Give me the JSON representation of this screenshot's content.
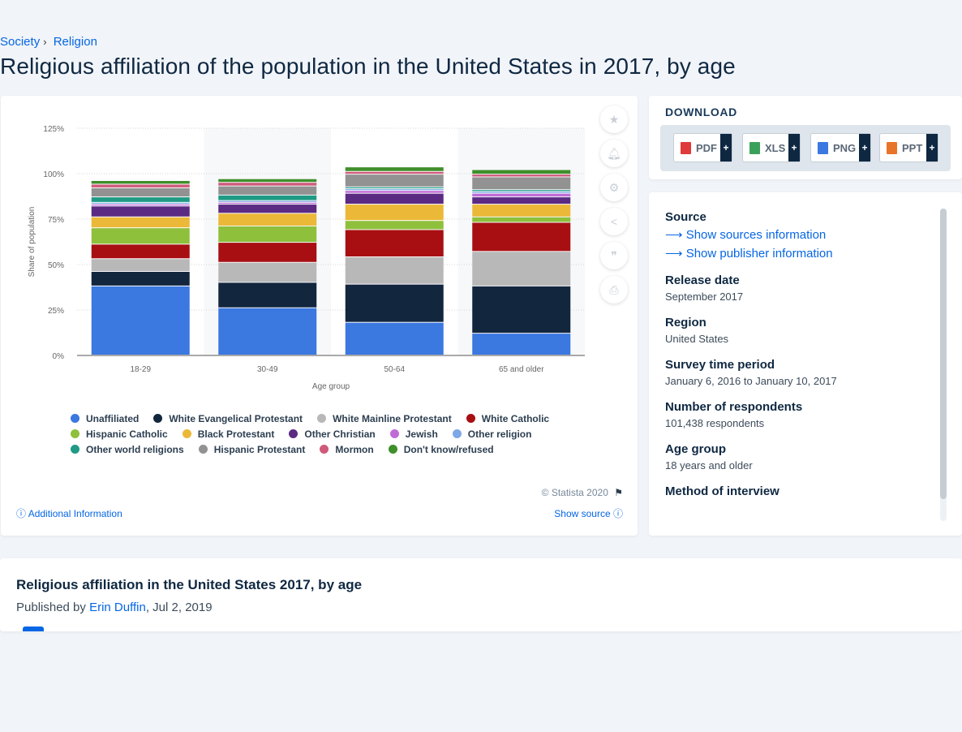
{
  "breadcrumb": {
    "items": [
      "Society",
      "Religion"
    ]
  },
  "page_title": "Religious affiliation of the population in the United States in 2017, by age",
  "chart_data": {
    "type": "bar",
    "stacked": true,
    "title": "",
    "xlabel": "Age group",
    "ylabel": "Share of population",
    "ylim": [
      0,
      125
    ],
    "yticks": [
      "0%",
      "25%",
      "50%",
      "75%",
      "100%",
      "125%"
    ],
    "grid": true,
    "legend_position": "bottom",
    "categories": [
      "18-29",
      "30-49",
      "50-64",
      "65 and older"
    ],
    "series": [
      {
        "name": "Unaffiliated",
        "color": "#3b78e0",
        "values": [
          38,
          26,
          18,
          12
        ]
      },
      {
        "name": "White Evangelical Protestant",
        "color": "#12263e",
        "values": [
          8,
          14,
          21,
          26
        ]
      },
      {
        "name": "White Mainline Protestant",
        "color": "#b8b8b8",
        "values": [
          7,
          11,
          15,
          19
        ]
      },
      {
        "name": "White Catholic",
        "color": "#a80f12",
        "values": [
          8,
          11,
          15,
          16
        ]
      },
      {
        "name": "Hispanic Catholic",
        "color": "#8ec03c",
        "values": [
          9,
          9,
          5,
          3
        ]
      },
      {
        "name": "Black Protestant",
        "color": "#ecb838",
        "values": [
          6,
          7,
          9,
          7
        ]
      },
      {
        "name": "Other Christian",
        "color": "#5b2a82",
        "values": [
          6,
          5,
          6,
          4
        ]
      },
      {
        "name": "Jewish",
        "color": "#bf6bd6",
        "values": [
          1,
          1,
          1.5,
          2
        ]
      },
      {
        "name": "Other religion",
        "color": "#7ea8e6",
        "values": [
          1,
          1,
          1,
          1
        ]
      },
      {
        "name": "Other world religions",
        "color": "#1f9a84",
        "values": [
          3,
          3,
          1,
          1
        ]
      },
      {
        "name": "Hispanic Protestant",
        "color": "#929292",
        "values": [
          5,
          5,
          7,
          7
        ]
      },
      {
        "name": "Mormon",
        "color": "#cf5a7a",
        "values": [
          2,
          2,
          1.5,
          1.5
        ]
      },
      {
        "name": "Don't know/refused",
        "color": "#3f8f2a",
        "values": [
          2,
          2,
          2.5,
          2.5
        ]
      }
    ]
  },
  "chart_meta": {
    "copyright": "© Statista 2020",
    "additional_info": "Additional Information",
    "show_source": "Show source"
  },
  "side_buttons": [
    "star-icon",
    "bell-icon",
    "gear-icon",
    "share-icon",
    "quote-icon",
    "print-icon"
  ],
  "download": {
    "title": "DOWNLOAD",
    "buttons": [
      {
        "label": "PDF",
        "color": "#e03a3a"
      },
      {
        "label": "XLS",
        "color": "#3aa15a"
      },
      {
        "label": "PNG",
        "color": "#3b78e0"
      },
      {
        "label": "PPT",
        "color": "#e8742a"
      }
    ],
    "plus": "+"
  },
  "info": {
    "source_heading": "Source",
    "show_sources": "Show sources information",
    "show_publisher": "Show publisher information",
    "release_date_heading": "Release date",
    "release_date": "September 2017",
    "region_heading": "Region",
    "region": "United States",
    "survey_period_heading": "Survey time period",
    "survey_period": "January 6, 2016 to January 10, 2017",
    "respondents_heading": "Number of respondents",
    "respondents": "101,438 respondents",
    "age_group_heading": "Age group",
    "age_group": "18 years and older",
    "method_heading": "Method of interview"
  },
  "lower": {
    "title": "Religious affiliation in the United States 2017, by age",
    "published_by": "Published by",
    "author": "Erin Duffin",
    "date": ", Jul 2, 2019"
  }
}
